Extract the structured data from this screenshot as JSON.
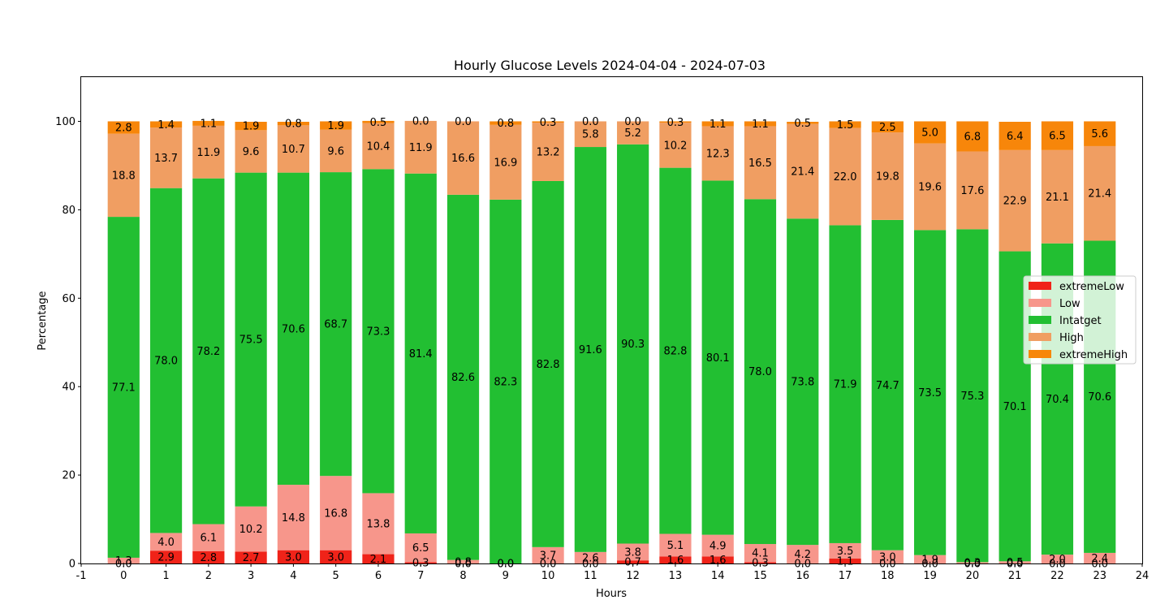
{
  "chart_data": {
    "type": "bar",
    "stacked": true,
    "title": "Hourly Glucose Levels 2024-04-04 - 2024-07-03",
    "xlabel": "Hours",
    "ylabel": "Percentage",
    "xlim": [
      -1,
      24
    ],
    "ylim": [
      0,
      110
    ],
    "x_ticks": [
      -1,
      0,
      1,
      2,
      3,
      4,
      5,
      6,
      7,
      8,
      9,
      10,
      11,
      12,
      13,
      14,
      15,
      16,
      17,
      18,
      19,
      20,
      21,
      22,
      23,
      24
    ],
    "y_ticks": [
      0,
      20,
      40,
      60,
      80,
      100
    ],
    "grid": false,
    "legend_position": "center-right",
    "categories": [
      0,
      1,
      2,
      3,
      4,
      5,
      6,
      7,
      8,
      9,
      10,
      11,
      12,
      13,
      14,
      15,
      16,
      17,
      18,
      19,
      20,
      21,
      22,
      23
    ],
    "series": [
      {
        "name": "extremeLow",
        "color": "#f02319",
        "values": [
          0.0,
          2.9,
          2.8,
          2.7,
          3.0,
          3.0,
          2.1,
          0.3,
          0.0,
          0.0,
          0.0,
          0.0,
          0.7,
          1.6,
          1.6,
          0.3,
          0.0,
          1.1,
          0.0,
          0.0,
          0.0,
          0.0,
          0.0,
          0.0
        ]
      },
      {
        "name": "Low",
        "color": "#f7968b",
        "values": [
          1.3,
          4.0,
          6.1,
          10.2,
          14.8,
          16.8,
          13.8,
          6.5,
          0.8,
          0.0,
          3.7,
          2.6,
          3.8,
          5.1,
          4.9,
          4.1,
          4.2,
          3.5,
          3.0,
          1.9,
          0.3,
          0.5,
          2.0,
          2.4
        ]
      },
      {
        "name": "Intatget",
        "color": "#22bf32",
        "values": [
          77.1,
          78.0,
          78.2,
          75.5,
          70.6,
          68.7,
          73.3,
          81.4,
          82.6,
          82.3,
          82.8,
          91.6,
          90.3,
          82.8,
          80.1,
          78.0,
          73.8,
          71.9,
          74.7,
          73.5,
          75.3,
          70.1,
          70.4,
          70.6
        ]
      },
      {
        "name": "High",
        "color": "#f09e62",
        "values": [
          18.8,
          13.7,
          11.9,
          9.6,
          10.7,
          9.6,
          10.4,
          11.9,
          16.6,
          16.9,
          13.2,
          5.8,
          5.2,
          10.2,
          12.3,
          16.5,
          21.4,
          22.0,
          19.8,
          19.6,
          17.6,
          22.9,
          21.1,
          21.4
        ]
      },
      {
        "name": "extremeHigh",
        "color": "#f7860a",
        "values": [
          2.8,
          1.4,
          1.1,
          1.9,
          0.8,
          1.9,
          0.5,
          0.0,
          0.0,
          0.8,
          0.3,
          0.0,
          0.0,
          0.3,
          1.1,
          1.1,
          0.5,
          1.5,
          2.5,
          5.0,
          6.8,
          6.4,
          6.5,
          5.6
        ]
      }
    ]
  }
}
